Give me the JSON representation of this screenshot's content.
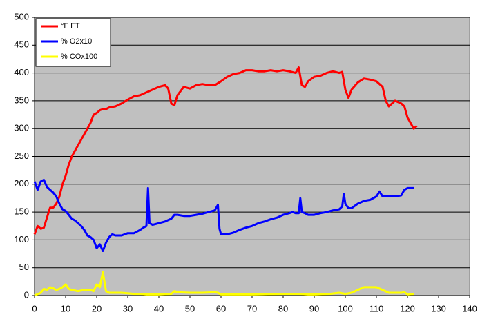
{
  "chart_data": {
    "type": "line",
    "xlim": [
      0,
      140
    ],
    "xticks": [
      0,
      10,
      20,
      30,
      40,
      50,
      60,
      70,
      80,
      90,
      100,
      110,
      120,
      130,
      140
    ],
    "ylim": [
      0,
      500
    ],
    "yticks": [
      0,
      50,
      100,
      150,
      200,
      250,
      300,
      350,
      400,
      450,
      500
    ],
    "grid": true,
    "legend": "top-left",
    "series": [
      {
        "name": "°F FT",
        "color": "#ff0000",
        "x": [
          0,
          1,
          2,
          3,
          4,
          5,
          6,
          7,
          8,
          9,
          10,
          11,
          12,
          13,
          14,
          15,
          16,
          17,
          18,
          19,
          20,
          21,
          22,
          23,
          24,
          26,
          28,
          30,
          32,
          34,
          36,
          38,
          40,
          42,
          43,
          44,
          45,
          46,
          48,
          50,
          52,
          54,
          56,
          58,
          60,
          62,
          64,
          66,
          68,
          70,
          72,
          74,
          76,
          78,
          80,
          82,
          84,
          85,
          86,
          87,
          88,
          90,
          92,
          94,
          96,
          98,
          99,
          100,
          101,
          102,
          104,
          106,
          108,
          110,
          112,
          113,
          114,
          116,
          118,
          119,
          120,
          121,
          122,
          123
        ],
        "values": [
          110,
          125,
          120,
          122,
          140,
          158,
          158,
          165,
          178,
          200,
          215,
          235,
          250,
          260,
          270,
          280,
          290,
          300,
          310,
          325,
          328,
          333,
          335,
          335,
          338,
          340,
          345,
          352,
          358,
          360,
          365,
          370,
          375,
          378,
          372,
          345,
          342,
          360,
          375,
          372,
          378,
          380,
          378,
          378,
          385,
          393,
          398,
          400,
          405,
          405,
          403,
          403,
          405,
          403,
          405,
          403,
          400,
          410,
          378,
          375,
          385,
          393,
          395,
          400,
          403,
          400,
          402,
          370,
          355,
          370,
          383,
          390,
          388,
          385,
          375,
          350,
          340,
          350,
          345,
          340,
          320,
          310,
          300,
          305
        ]
      },
      {
        "name": "% O2x10",
        "color": "#0000ff",
        "x": [
          0,
          1,
          2,
          3,
          4,
          5,
          6,
          7,
          8,
          9,
          10,
          11,
          12,
          13,
          14,
          15,
          16,
          17,
          18,
          19,
          20,
          21,
          22,
          23,
          24,
          25,
          26,
          28,
          30,
          32,
          34,
          35,
          36,
          36.5,
          37,
          38,
          40,
          42,
          44,
          45,
          46,
          48,
          50,
          52,
          54,
          56,
          58,
          59,
          59.5,
          60,
          62,
          64,
          66,
          68,
          70,
          72,
          74,
          76,
          78,
          80,
          82,
          83,
          84,
          85,
          85.5,
          86,
          87,
          88,
          90,
          92,
          94,
          96,
          98,
          99,
          99.5,
          100,
          101,
          102,
          104,
          106,
          108,
          110,
          111,
          112,
          114,
          116,
          118,
          119,
          120,
          122
        ],
        "values": [
          205,
          190,
          205,
          208,
          195,
          190,
          185,
          178,
          165,
          155,
          152,
          145,
          138,
          135,
          130,
          125,
          118,
          108,
          105,
          100,
          85,
          92,
          80,
          95,
          105,
          110,
          108,
          108,
          112,
          112,
          118,
          122,
          125,
          193,
          130,
          127,
          130,
          133,
          138,
          145,
          145,
          143,
          143,
          145,
          147,
          150,
          153,
          163,
          120,
          110,
          110,
          113,
          118,
          122,
          125,
          130,
          133,
          137,
          140,
          145,
          148,
          150,
          148,
          148,
          175,
          150,
          148,
          145,
          145,
          148,
          150,
          153,
          155,
          160,
          183,
          165,
          157,
          157,
          165,
          170,
          172,
          178,
          187,
          178,
          178,
          178,
          180,
          190,
          193,
          193
        ]
      },
      {
        "name": "% COx100",
        "color": "#ffff00",
        "x": [
          0,
          2,
          3,
          4,
          5,
          6,
          7,
          8,
          9,
          10,
          11,
          12,
          14,
          16,
          18,
          19,
          20,
          21,
          22,
          23,
          24,
          26,
          28,
          30,
          32,
          34,
          36,
          40,
          44,
          45,
          46,
          50,
          54,
          58,
          59,
          60,
          64,
          70,
          80,
          85,
          88,
          90,
          95,
          98,
          100,
          102,
          104,
          106,
          108,
          110,
          112,
          114,
          118,
          119,
          120,
          122
        ],
        "values": [
          0,
          5,
          12,
          10,
          15,
          13,
          10,
          12,
          15,
          20,
          12,
          10,
          8,
          10,
          10,
          8,
          20,
          15,
          42,
          8,
          5,
          5,
          5,
          4,
          3,
          3,
          2,
          2,
          3,
          8,
          6,
          5,
          5,
          6,
          5,
          2,
          2,
          2,
          3,
          3,
          2,
          2,
          3,
          5,
          3,
          5,
          10,
          15,
          15,
          15,
          10,
          5,
          5,
          6,
          2,
          3
        ]
      }
    ]
  }
}
